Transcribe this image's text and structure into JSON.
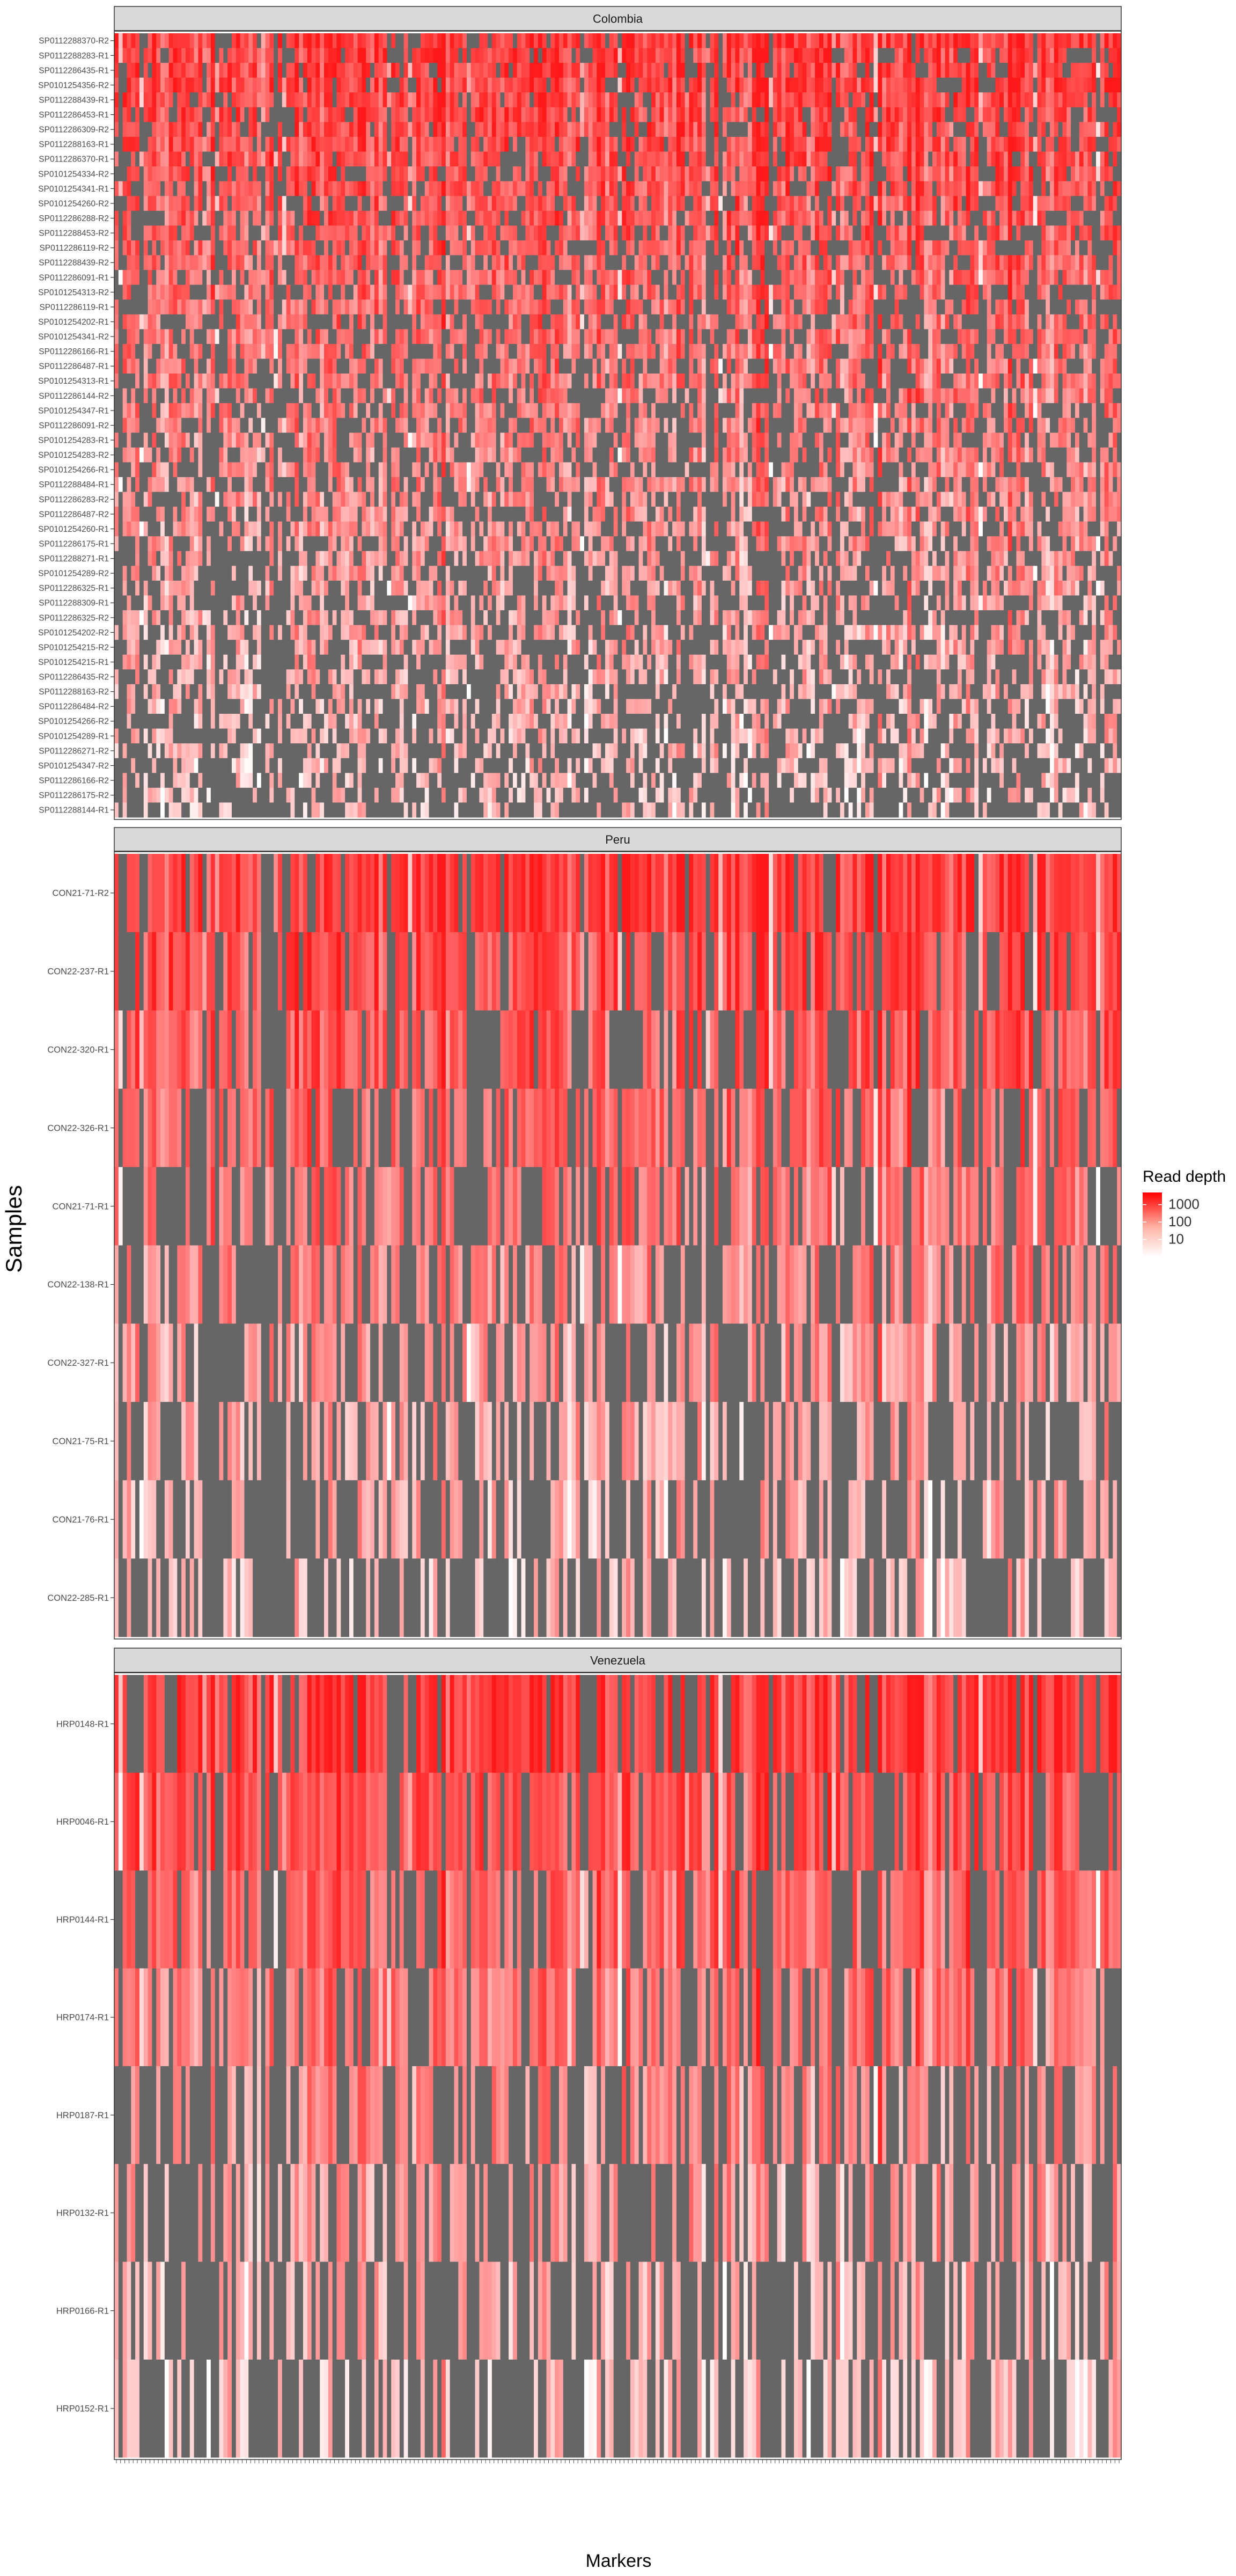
{
  "axis": {
    "ylabel": "Samples",
    "xlabel": "Markers"
  },
  "legend": {
    "title": "Read depth",
    "ticks": [
      "1000",
      "100",
      "10"
    ],
    "colors": {
      "low": "#ffffff",
      "high": "#ff0000",
      "missing": "#666666"
    }
  },
  "chart_data": {
    "type": "heatmap",
    "value_scale": "log10",
    "color_range": [
      1,
      5000
    ],
    "facets": [
      {
        "name": "Colombia",
        "samples": [
          "SP0112288370-R2",
          "SP0112288283-R1",
          "SP0112286435-R1",
          "SP0101254356-R2",
          "SP0112288439-R1",
          "SP0112286453-R1",
          "SP0112286309-R2",
          "SP0112288163-R1",
          "SP0112286370-R1",
          "SP0101254334-R2",
          "SP0101254341-R1",
          "SP0101254260-R2",
          "SP0112286288-R2",
          "SP0112288453-R2",
          "SP0112286119-R2",
          "SP0112288439-R2",
          "SP0112286091-R1",
          "SP0101254313-R2",
          "SP0112286119-R1",
          "SP0101254202-R1",
          "SP0101254341-R2",
          "SP0112286166-R1",
          "SP0112286487-R1",
          "SP0101254313-R1",
          "SP0112286144-R2",
          "SP0101254347-R1",
          "SP0112286091-R2",
          "SP0101254283-R1",
          "SP0101254283-R2",
          "SP0101254266-R1",
          "SP0112288484-R1",
          "SP0112286283-R2",
          "SP0112286487-R2",
          "SP0101254260-R1",
          "SP0112286175-R1",
          "SP0112288271-R1",
          "SP0101254289-R2",
          "SP0112286325-R1",
          "SP0112288309-R1",
          "SP0112286325-R2",
          "SP0101254202-R2",
          "SP0101254215-R2",
          "SP0101254215-R1",
          "SP0112286435-R2",
          "SP0112288163-R2",
          "SP0112286484-R2",
          "SP0101254266-R2",
          "SP0101254289-R1",
          "SP0112286271-R2",
          "SP0101254347-R2",
          "SP0112286166-R2",
          "SP0112286175-R2",
          "SP0112288144-R1"
        ]
      },
      {
        "name": "Peru",
        "samples": [
          "CON21-71-R2",
          "CON22-237-R1",
          "CON22-320-R1",
          "CON22-326-R1",
          "CON21-71-R1",
          "CON22-138-R1",
          "CON22-327-R1",
          "CON21-75-R1",
          "CON21-76-R1",
          "CON22-285-R1"
        ]
      },
      {
        "name": "Venezuela",
        "samples": [
          "HRP0148-R1",
          "HRP0046-R1",
          "HRP0144-R1",
          "HRP0174-R1",
          "HRP0187-R1",
          "HRP0132-R1",
          "HRP0166-R1",
          "HRP0152-R1"
        ]
      }
    ],
    "n_markers": 240,
    "seed": 20240517
  }
}
